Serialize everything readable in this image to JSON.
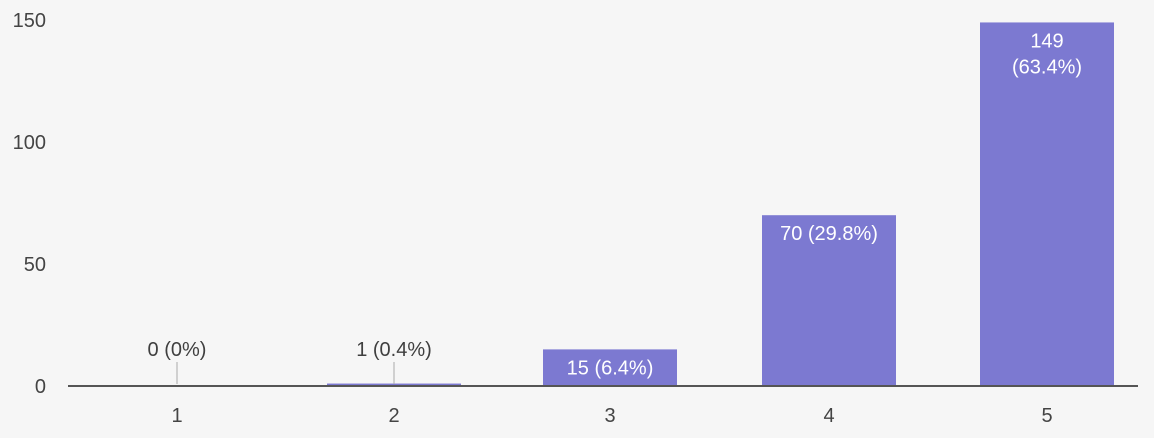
{
  "chart_data": {
    "type": "bar",
    "categories": [
      "1",
      "2",
      "3",
      "4",
      "5"
    ],
    "values": [
      0,
      1,
      15,
      70,
      149
    ],
    "data_labels": [
      [
        "0 (0%)"
      ],
      [
        "1 (0.4%)"
      ],
      [
        "15 (6.4%)"
      ],
      [
        "70 (29.8%)"
      ],
      [
        "149",
        "(63.4%)"
      ]
    ],
    "yticks": [
      "0",
      "50",
      "100",
      "150"
    ],
    "ylim": [
      0,
      150
    ],
    "title": "",
    "xlabel": "",
    "ylabel": "",
    "grid": false,
    "colors": {
      "bar": "#7c79d1",
      "axis": "#555555",
      "background": "#f6f6f6"
    }
  }
}
